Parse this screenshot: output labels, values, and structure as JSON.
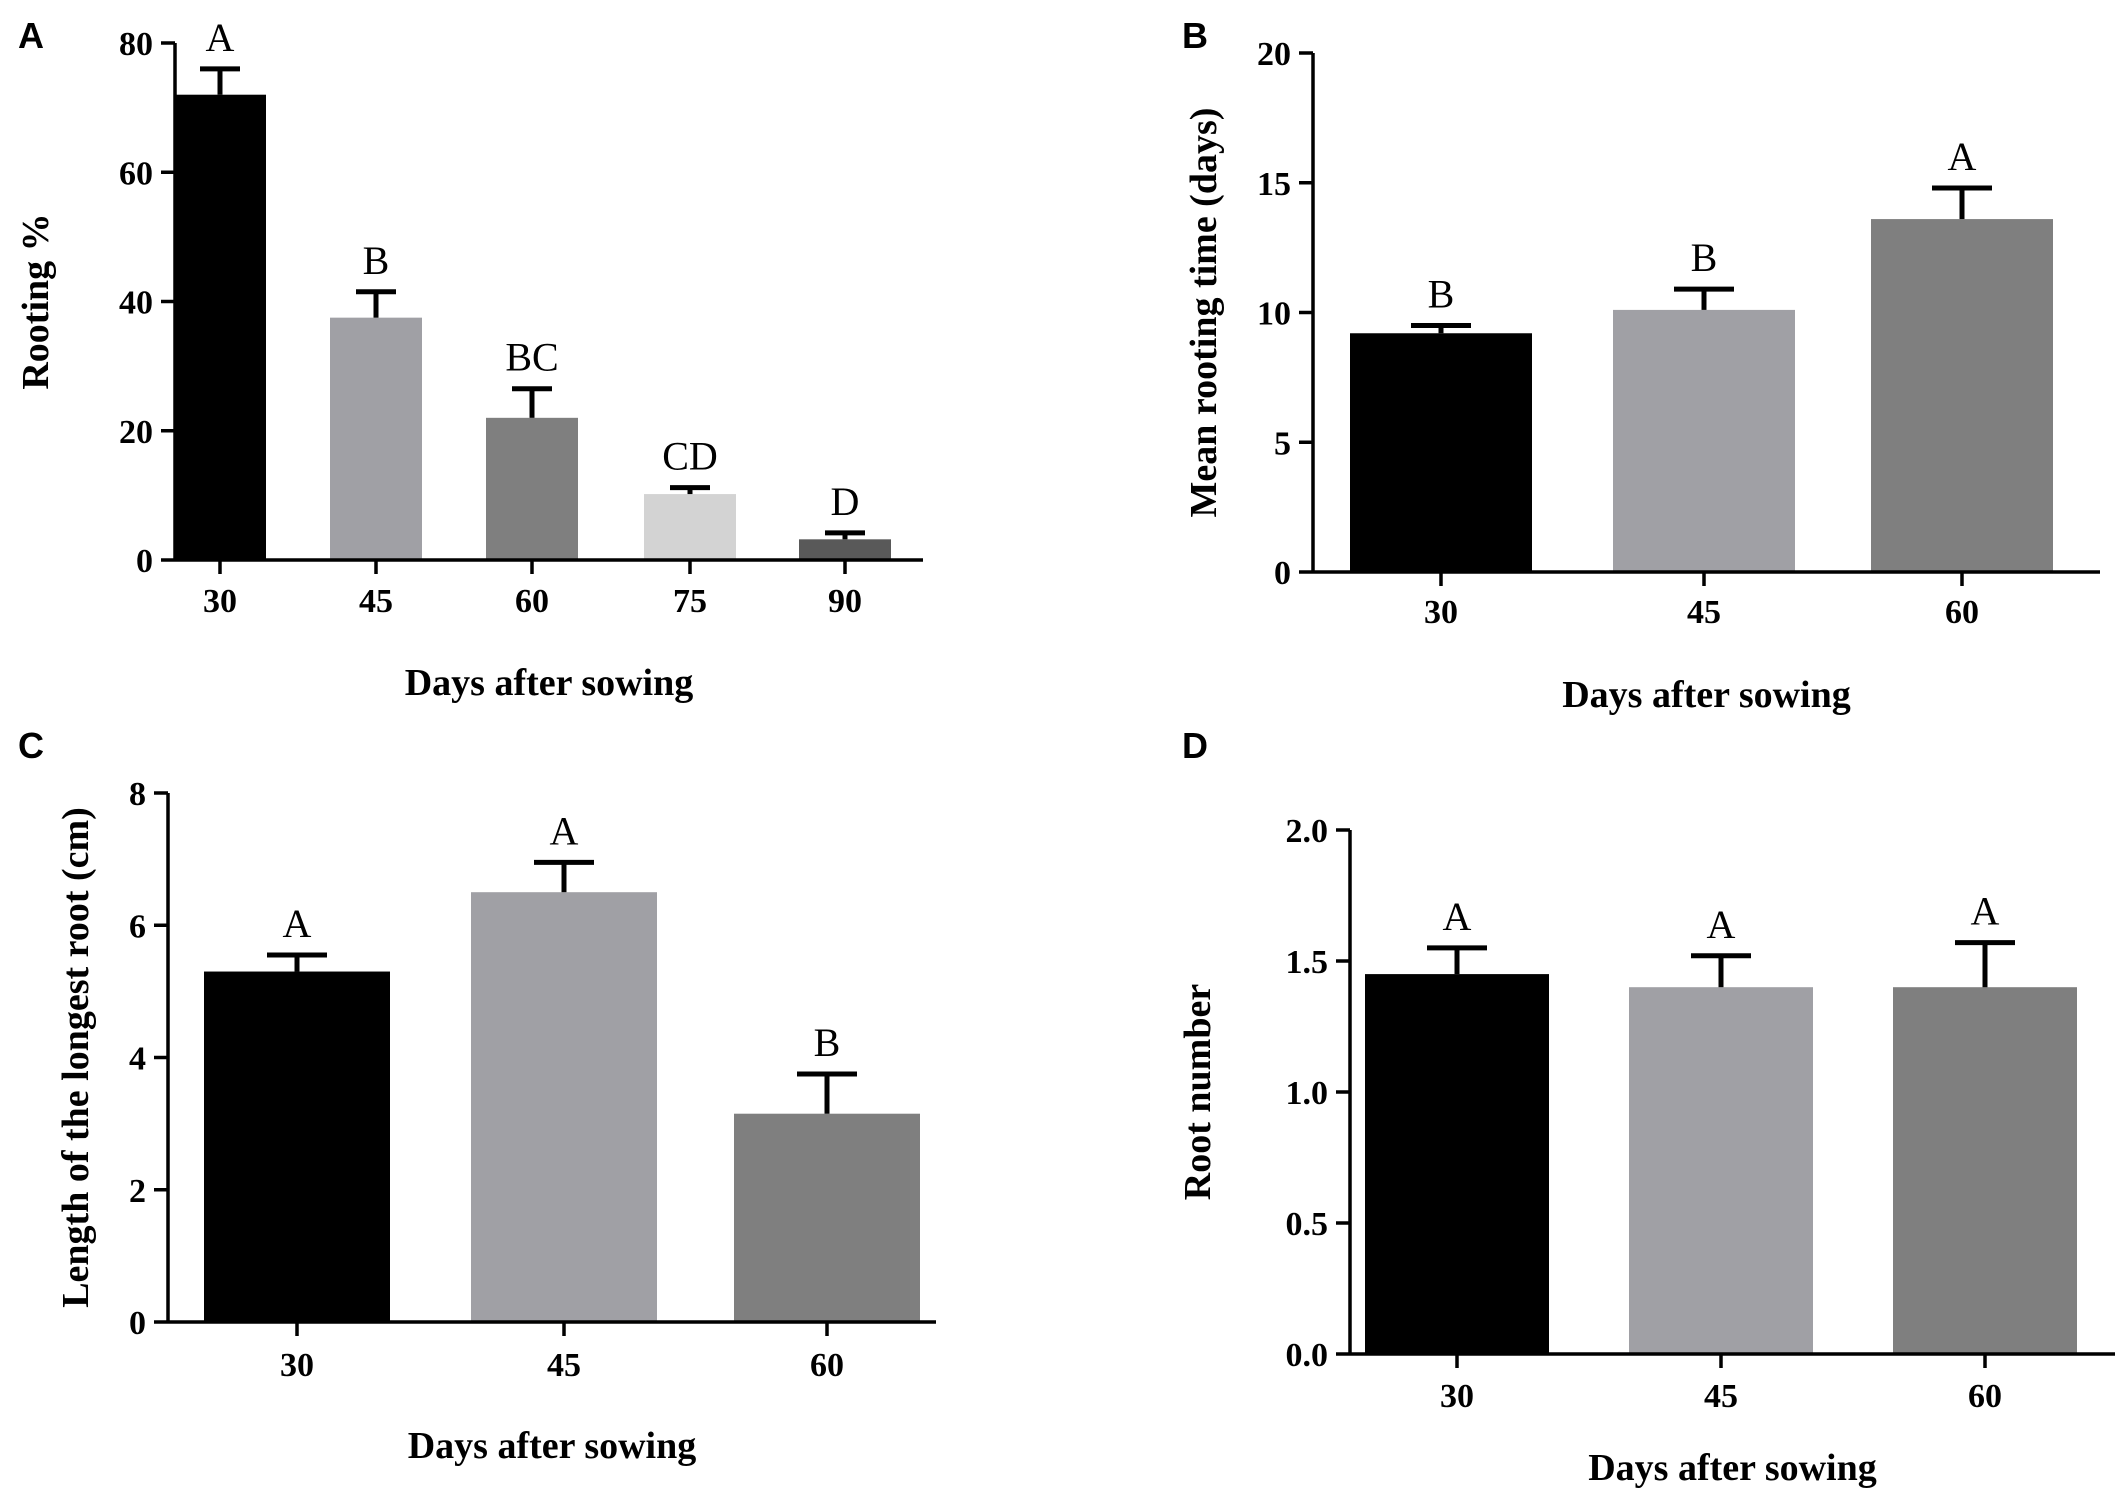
{
  "chart_data": [
    {
      "panel": "A",
      "type": "bar",
      "categories": [
        "30",
        "45",
        "60",
        "75",
        "90"
      ],
      "values": [
        72,
        37.5,
        22,
        10.2,
        3.2
      ],
      "errors": [
        4,
        4,
        4.5,
        1,
        1
      ],
      "letters": [
        "A",
        "B",
        "BC",
        "CD",
        "D"
      ],
      "colors": [
        "#000000",
        "#a0a0a5",
        "#7f7f7f",
        "#d3d3d3",
        "#595959"
      ],
      "ylabel": "Rooting %",
      "xlabel": "Days after sowing",
      "ylim": [
        0,
        80
      ],
      "yticks": [
        "0",
        "20",
        "40",
        "60",
        "80"
      ]
    },
    {
      "panel": "B",
      "type": "bar",
      "categories": [
        "30",
        "45",
        "60"
      ],
      "values": [
        9.2,
        10.1,
        13.6
      ],
      "errors": [
        0.3,
        0.8,
        1.2
      ],
      "letters": [
        "B",
        "B",
        "A"
      ],
      "colors": [
        "#000000",
        "#a0a0a5",
        "#7f7f7f"
      ],
      "ylabel": "Mean rooting time (days)",
      "xlabel": "Days after sowing",
      "ylim": [
        0,
        20
      ],
      "yticks": [
        "0",
        "5",
        "10",
        "15",
        "20"
      ]
    },
    {
      "panel": "C",
      "type": "bar",
      "categories": [
        "30",
        "45",
        "60"
      ],
      "values": [
        5.3,
        6.5,
        3.15
      ],
      "errors": [
        0.25,
        0.45,
        0.6
      ],
      "letters": [
        "A",
        "A",
        "B"
      ],
      "colors": [
        "#000000",
        "#a0a0a5",
        "#7f7f7f"
      ],
      "ylabel": "Length of the longest root (cm)",
      "xlabel": "Days after sowing",
      "ylim": [
        0,
        8
      ],
      "yticks": [
        "0",
        "2",
        "4",
        "6",
        "8"
      ]
    },
    {
      "panel": "D",
      "type": "bar",
      "categories": [
        "30",
        "45",
        "60"
      ],
      "values": [
        1.45,
        1.4,
        1.4
      ],
      "errors": [
        0.1,
        0.12,
        0.17
      ],
      "letters": [
        "A",
        "A",
        "A"
      ],
      "colors": [
        "#000000",
        "#a0a0a5",
        "#7f7f7f"
      ],
      "ylabel": "Root number",
      "xlabel": "Days after sowing",
      "ylim": [
        0,
        2
      ],
      "yticks": [
        "0.0",
        "0.5",
        "1.0",
        "1.5",
        "2.0"
      ]
    }
  ]
}
